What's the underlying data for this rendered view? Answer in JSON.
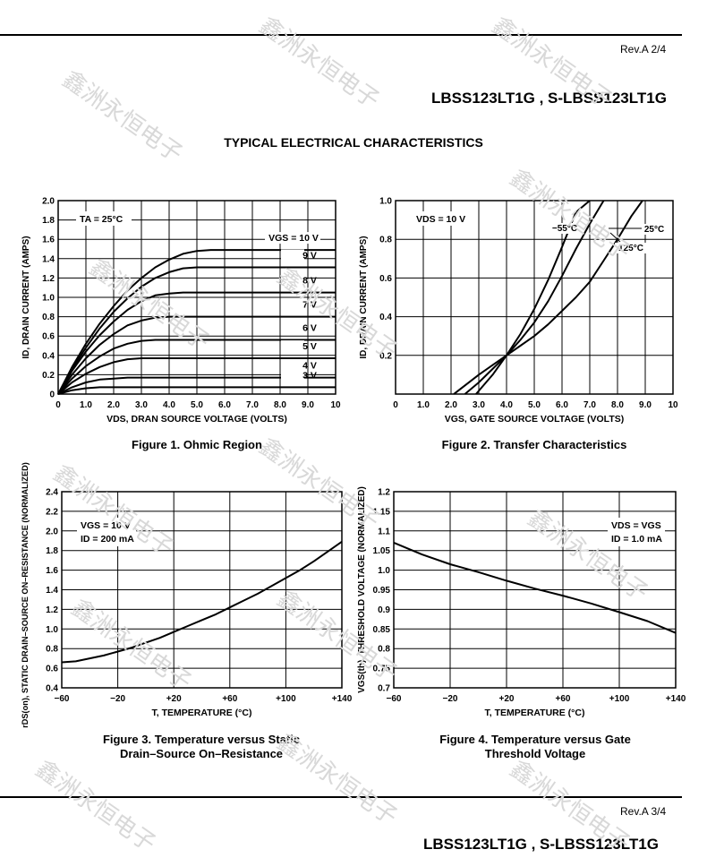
{
  "header": {
    "rev": "Rev.A  2/4",
    "part": "LBSS123LT1G , S-LBSS123LT1G"
  },
  "footer": {
    "rev": "Rev.A  3/4",
    "part": "LBSS123LT1G , S-LBSS123LT1G"
  },
  "section_title": "TYPICAL ELECTRICAL CHARACTERISTICS",
  "watermark": "鑫洲永恒电子",
  "captions": {
    "fig1": "Figure 1. Ohmic Region",
    "fig2": "Figure 2. Transfer Characteristics",
    "fig3_l1": "Figure 3. Temperature versus Static",
    "fig3_l2": "Drain–Source On–Resistance",
    "fig4_l1": "Figure 4. Temperature versus Gate",
    "fig4_l2": "Threshold Voltage"
  },
  "chart_data": [
    {
      "id": "fig1",
      "type": "line",
      "title": "Figure 1. Ohmic Region",
      "xlabel": "VDS, DRAN SOURCE VOLTAGE (VOLTS)",
      "ylabel": "ID, DRAIN CURRENT (AMPS)",
      "xlim": [
        0,
        10
      ],
      "ylim": [
        0,
        2.0
      ],
      "xticks": [
        "0",
        "1.0",
        "2.0",
        "3.0",
        "4.0",
        "5.0",
        "6.0",
        "7.0",
        "8.0",
        "9.0",
        "10"
      ],
      "yticks": [
        "0",
        "0.2",
        "0.4",
        "0.6",
        "0.8",
        "1.0",
        "1.2",
        "1.4",
        "1.6",
        "1.8",
        "2.0"
      ],
      "annotation": "TA = 25°C",
      "series": [
        {
          "name": "VGS = 10 V",
          "label": "VGS = 10 V",
          "x": [
            0,
            0.5,
            1,
            1.5,
            2,
            2.5,
            3,
            3.5,
            4,
            4.5,
            5,
            5.5,
            6,
            10
          ],
          "y": [
            0,
            0.28,
            0.52,
            0.73,
            0.91,
            1.07,
            1.2,
            1.31,
            1.39,
            1.45,
            1.48,
            1.49,
            1.49,
            1.49
          ]
        },
        {
          "name": "9 V",
          "label": "9 V",
          "x": [
            0,
            0.5,
            1,
            1.5,
            2,
            2.5,
            3,
            3.5,
            4,
            4.5,
            5,
            10
          ],
          "y": [
            0,
            0.26,
            0.48,
            0.68,
            0.85,
            0.99,
            1.11,
            1.2,
            1.26,
            1.3,
            1.31,
            1.31
          ]
        },
        {
          "name": "8 V",
          "label": "8 V",
          "x": [
            0,
            0.5,
            1,
            1.5,
            2,
            2.5,
            3,
            3.5,
            4,
            4.5,
            10
          ],
          "y": [
            0,
            0.24,
            0.44,
            0.61,
            0.75,
            0.87,
            0.96,
            1.02,
            1.04,
            1.05,
            1.05
          ]
        },
        {
          "name": "7 V",
          "label": "7 V",
          "x": [
            0,
            0.5,
            1,
            1.5,
            2,
            2.5,
            3,
            3.5,
            4,
            10
          ],
          "y": [
            0,
            0.2,
            0.37,
            0.51,
            0.62,
            0.71,
            0.76,
            0.79,
            0.8,
            0.8
          ]
        },
        {
          "name": "6 V",
          "label": "6 V",
          "x": [
            0,
            0.5,
            1,
            1.5,
            2,
            2.5,
            3,
            3.5,
            10
          ],
          "y": [
            0,
            0.16,
            0.29,
            0.39,
            0.47,
            0.52,
            0.55,
            0.56,
            0.56
          ]
        },
        {
          "name": "5 V",
          "label": "5 V",
          "x": [
            0,
            0.5,
            1,
            1.5,
            2,
            2.5,
            3,
            10
          ],
          "y": [
            0,
            0.12,
            0.21,
            0.28,
            0.33,
            0.36,
            0.37,
            0.37
          ]
        },
        {
          "name": "4 V",
          "label": "4 V",
          "x": [
            0,
            0.5,
            1,
            1.5,
            2,
            2.5,
            10
          ],
          "y": [
            0,
            0.07,
            0.12,
            0.15,
            0.16,
            0.17,
            0.17
          ]
        },
        {
          "name": "3 V",
          "label": "3 V",
          "x": [
            0,
            0.5,
            1,
            1.5,
            10
          ],
          "y": [
            0,
            0.04,
            0.06,
            0.07,
            0.07
          ]
        }
      ]
    },
    {
      "id": "fig2",
      "type": "line",
      "title": "Figure 2. Transfer Characteristics",
      "xlabel": "VGS, GATE SOURCE VOLTAGE (VOLTS)",
      "ylabel": "ID, DRAIN CURRENT (AMPS)",
      "xlim": [
        0,
        10
      ],
      "ylim": [
        0,
        1.0
      ],
      "xticks": [
        "0",
        "1.0",
        "2.0",
        "3.0",
        "4.0",
        "5.0",
        "6.0",
        "7.0",
        "8.0",
        "9.0",
        "10"
      ],
      "yticks": [
        "",
        "0.2",
        "0.4",
        "0.6",
        "0.8",
        "1.0"
      ],
      "annotation": "VDS = 10 V",
      "series": [
        {
          "name": "−55°C",
          "label": "−55°C",
          "x": [
            2.9,
            3.5,
            4,
            4.5,
            5,
            5.5,
            6,
            6.5,
            7
          ],
          "y": [
            0,
            0.1,
            0.2,
            0.31,
            0.44,
            0.59,
            0.76,
            0.94,
            1.0
          ]
        },
        {
          "name": "25°C",
          "label": "25°C",
          "x": [
            2.5,
            3,
            3.5,
            4,
            4.5,
            5,
            5.5,
            6,
            6.5,
            7,
            7.5
          ],
          "y": [
            0,
            0.06,
            0.13,
            0.2,
            0.28,
            0.37,
            0.48,
            0.61,
            0.75,
            0.88,
            1.0
          ]
        },
        {
          "name": "125°C",
          "label": "125°C",
          "x": [
            2.1,
            3,
            3.5,
            4,
            4.5,
            5,
            5.5,
            6,
            6.5,
            7,
            7.5,
            8,
            8.5,
            8.9
          ],
          "y": [
            0,
            0.1,
            0.15,
            0.2,
            0.25,
            0.3,
            0.36,
            0.43,
            0.5,
            0.58,
            0.69,
            0.8,
            0.92,
            1.0
          ]
        }
      ]
    },
    {
      "id": "fig3",
      "type": "line",
      "title": "Figure 3. Temperature versus Static Drain–Source On–Resistance",
      "xlabel": "T, TEMPERATURE (°C)",
      "ylabel": "rDS(on), STATIC DRAIN–SOURCE ON–RESISTANCE (NORMALIZED)",
      "xlim": [
        -60,
        140
      ],
      "ylim": [
        0.4,
        2.4
      ],
      "xticks": [
        "−60",
        "−20",
        "+20",
        "+60",
        "+100",
        "+140"
      ],
      "yticks": [
        "0.4",
        "0.6",
        "0.8",
        "1.0",
        "1.2",
        "1.4",
        "1.6",
        "1.8",
        "2.0",
        "2.2",
        "2.4"
      ],
      "annotation_l1": "VGS = 10 V",
      "annotation_l2": "ID = 200 mA",
      "series": [
        {
          "name": "rDS(on)",
          "x": [
            -60,
            -50,
            -40,
            -30,
            -20,
            -10,
            0,
            10,
            20,
            30,
            40,
            50,
            60,
            70,
            80,
            90,
            100,
            110,
            120,
            130,
            140
          ],
          "y": [
            0.66,
            0.67,
            0.7,
            0.73,
            0.77,
            0.81,
            0.86,
            0.91,
            0.97,
            1.03,
            1.09,
            1.15,
            1.22,
            1.29,
            1.36,
            1.44,
            1.52,
            1.6,
            1.69,
            1.79,
            1.89
          ]
        }
      ]
    },
    {
      "id": "fig4",
      "type": "line",
      "title": "Figure 4. Temperature versus Gate Threshold Voltage",
      "xlabel": "T, TEMPERATURE (°C)",
      "ylabel": "VGS(th), THRESHOLD VOLTAGE (NORMALIZED)",
      "xlim": [
        -60,
        140
      ],
      "ylim": [
        0.7,
        1.2
      ],
      "xticks": [
        "−60",
        "−20",
        "+20",
        "+60",
        "+100",
        "+140"
      ],
      "yticks": [
        "0.7",
        "0.75",
        "0.8",
        "0.85",
        "0.9",
        "0.95",
        "1.0",
        "1.05",
        "1.1",
        "1.15",
        "1.2"
      ],
      "annotation_l1": "VDS = VGS",
      "annotation_l2": "ID = 1.0 mA",
      "series": [
        {
          "name": "VGS(th)",
          "x": [
            -60,
            -40,
            -20,
            0,
            20,
            40,
            60,
            80,
            100,
            120,
            140
          ],
          "y": [
            1.07,
            1.04,
            1.015,
            0.995,
            0.973,
            0.953,
            0.935,
            0.915,
            0.893,
            0.87,
            0.84
          ]
        }
      ]
    }
  ]
}
